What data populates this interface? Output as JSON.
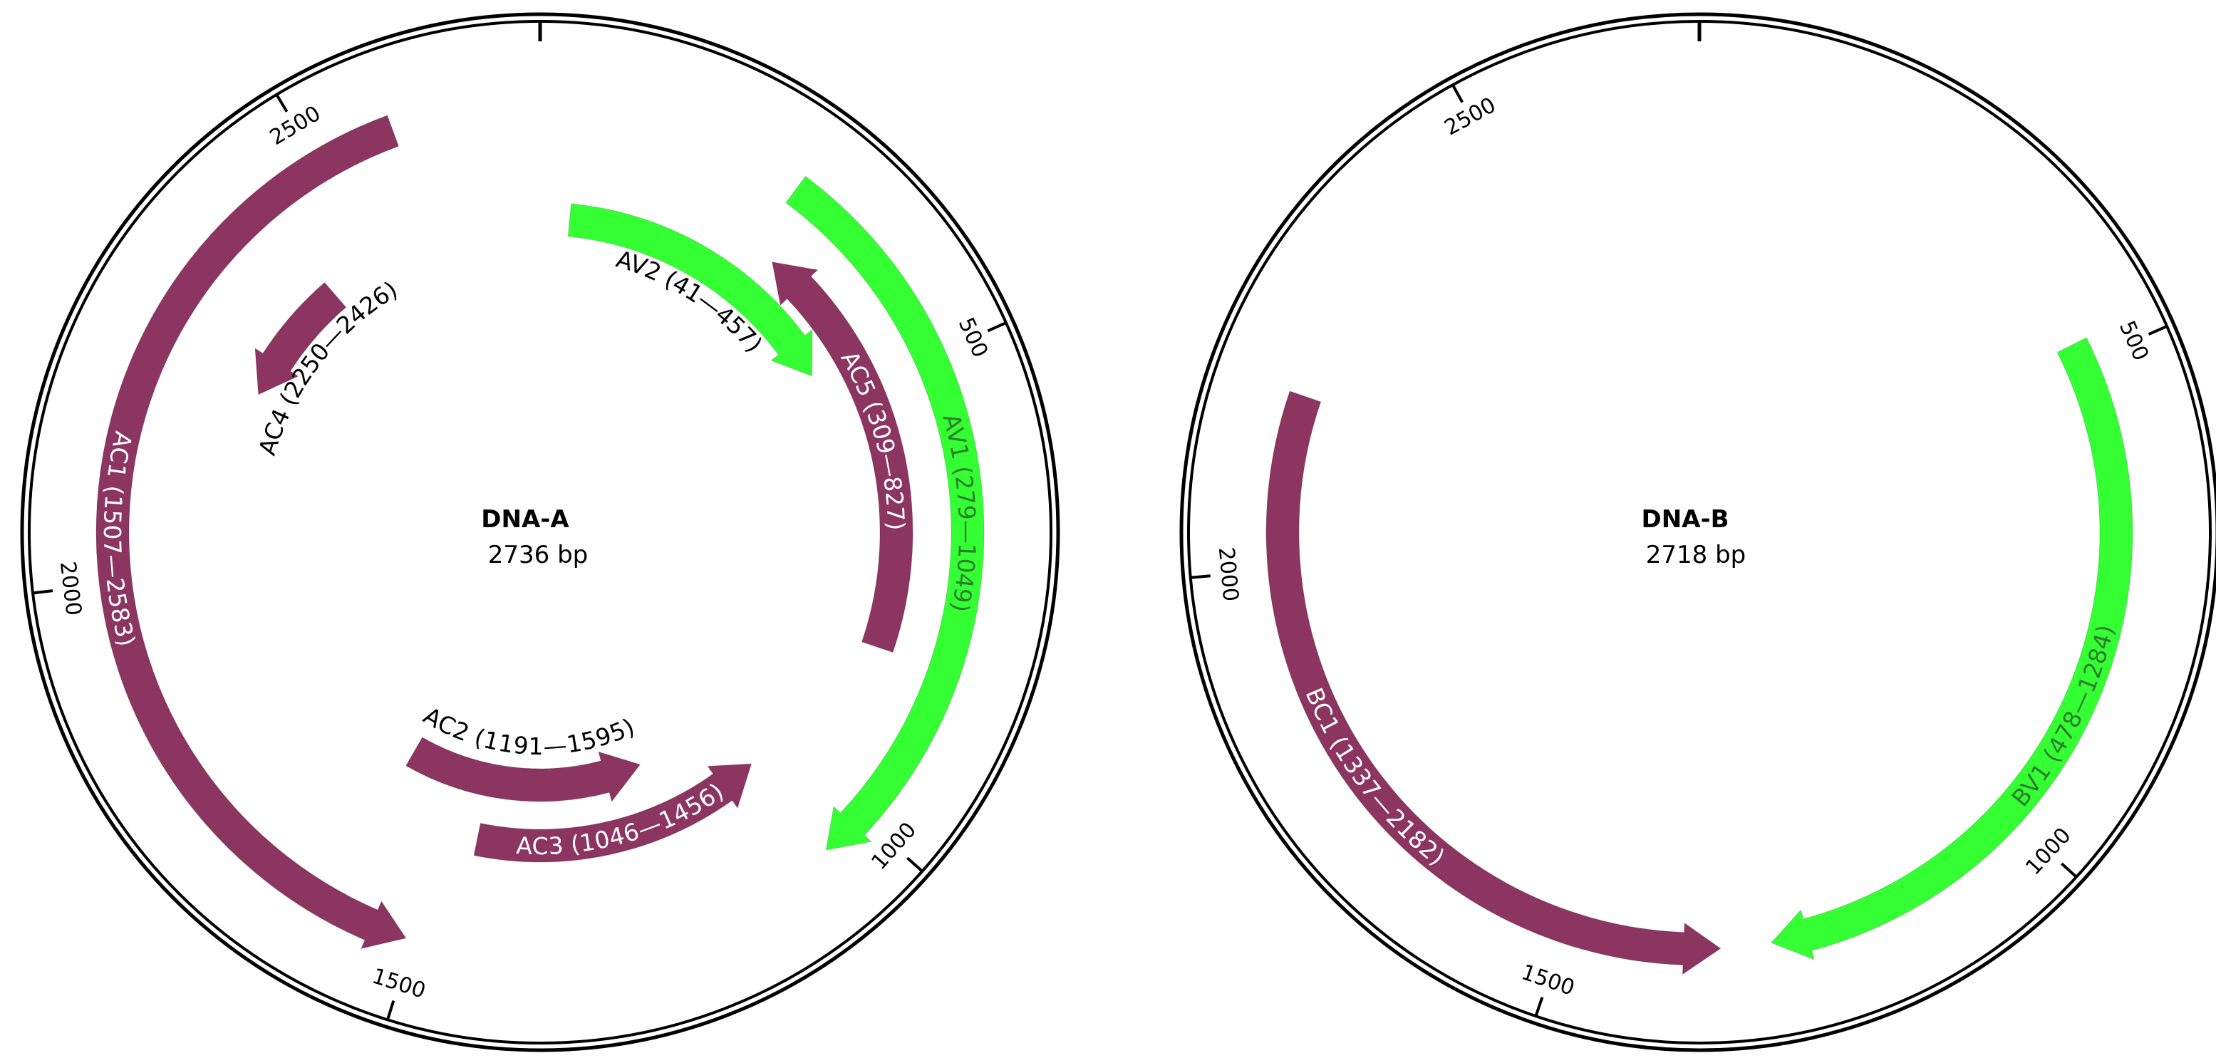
{
  "maps": [
    {
      "id": "dna-a",
      "name": "DNA-A",
      "size_label": "2736 bp",
      "length": 2736,
      "ticks": [
        {
          "pos": 0,
          "label": ""
        },
        {
          "pos": 500,
          "label": "500"
        },
        {
          "pos": 1000,
          "label": "1000"
        },
        {
          "pos": 1500,
          "label": "1500"
        },
        {
          "pos": 2000,
          "label": "2000"
        },
        {
          "pos": 2500,
          "label": "2500"
        }
      ],
      "features": [
        {
          "id": "AV1",
          "label": "AV1 (279—1049)",
          "start": 279,
          "end": 1049,
          "strand": 1,
          "color": "#33ff33",
          "text_color": "#2e7d2e",
          "label_mode": "inside"
        },
        {
          "id": "AV2",
          "label": "AV2 (41—457)",
          "start": 41,
          "end": 457,
          "strand": 1,
          "color": "#33ff33",
          "text_color": "#000000",
          "label_mode": "outside"
        },
        {
          "id": "AC5",
          "label": "AC5 (309—827)",
          "start": 309,
          "end": 827,
          "strand": -1,
          "color": "#8b3560",
          "text_color": "#ffffff",
          "label_mode": "inside"
        },
        {
          "id": "AC3",
          "label": "AC3 (1046—1456)",
          "start": 1046,
          "end": 1456,
          "strand": -1,
          "color": "#8b3560",
          "text_color": "#ffffff",
          "label_mode": "inside"
        },
        {
          "id": "AC2",
          "label": "AC2 (1191—1595)",
          "start": 1191,
          "end": 1595,
          "strand": -1,
          "color": "#8b3560",
          "text_color": "#000000",
          "label_mode": "outside"
        },
        {
          "id": "AC1",
          "label": "AC1 (1507—2583)",
          "start": 1507,
          "end": 2583,
          "strand": -1,
          "color": "#8b3560",
          "text_color": "#ffffff",
          "label_mode": "inside"
        },
        {
          "id": "AC4",
          "label": "AC4 (2250—2426)",
          "start": 2250,
          "end": 2426,
          "strand": -1,
          "color": "#8b3560",
          "text_color": "#000000",
          "label_mode": "outside"
        }
      ]
    },
    {
      "id": "dna-b",
      "name": "DNA-B",
      "size_label": "2718 bp",
      "length": 2718,
      "ticks": [
        {
          "pos": 0,
          "label": ""
        },
        {
          "pos": 500,
          "label": "500"
        },
        {
          "pos": 1000,
          "label": "1000"
        },
        {
          "pos": 1500,
          "label": "1500"
        },
        {
          "pos": 2000,
          "label": "2000"
        },
        {
          "pos": 2500,
          "label": "2500"
        }
      ],
      "features": [
        {
          "id": "BV1",
          "label": "BV1 (478—1284)",
          "start": 478,
          "end": 1284,
          "strand": 1,
          "color": "#33ff33",
          "text_color": "#2e7d2e",
          "label_mode": "inside"
        },
        {
          "id": "BC1",
          "label": "BC1 (1337—2182)",
          "start": 1337,
          "end": 2182,
          "strand": -1,
          "color": "#8b3560",
          "text_color": "#ffffff",
          "label_mode": "inside"
        }
      ]
    }
  ]
}
